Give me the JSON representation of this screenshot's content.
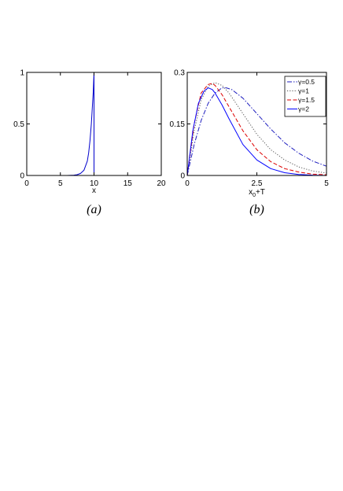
{
  "captions": [
    "(a)",
    "(b)"
  ],
  "chart_data": [
    {
      "type": "line",
      "xlabel": "x",
      "ylabel": "",
      "xlim": [
        0,
        20
      ],
      "ylim": [
        0,
        1
      ],
      "xticks": [
        0,
        5,
        10,
        15,
        20
      ],
      "yticks": [
        0,
        0.5,
        1
      ],
      "xtick_labels": [
        "0",
        "5",
        "10",
        "15",
        "20"
      ],
      "ytick_labels": [
        "0",
        "0.5",
        "1"
      ],
      "grid": false,
      "series": [
        {
          "color": "#0000cc",
          "style": "solid",
          "x": [
            0,
            6,
            7,
            7.5,
            8,
            8.5,
            9,
            9.2,
            9.4,
            9.6,
            9.7,
            9.8,
            9.9,
            10,
            10,
            10.1,
            10.3,
            20
          ],
          "y": [
            0,
            0,
            0.003,
            0.008,
            0.02,
            0.05,
            0.14,
            0.22,
            0.34,
            0.5,
            0.6,
            0.72,
            0.82,
            1.0,
            0,
            0,
            0,
            0
          ]
        }
      ]
    },
    {
      "type": "line",
      "xlabel": "x₀+T",
      "xlabel_parts": [
        "x",
        "0",
        "+T"
      ],
      "ylabel": "",
      "xlim": [
        0,
        5
      ],
      "ylim": [
        0,
        0.3
      ],
      "xticks": [
        0,
        2.5,
        5
      ],
      "yticks": [
        0,
        0.15,
        0.3
      ],
      "xtick_labels": [
        "0",
        "2.5",
        "5"
      ],
      "ytick_labels": [
        "0",
        "0.15",
        "0.3"
      ],
      "grid": false,
      "legend_position": "top-right",
      "series": [
        {
          "name": "γ=0.5",
          "color": "#1f1fbf",
          "style": "dashdot",
          "x": [
            0,
            0.25,
            0.5,
            0.75,
            1.0,
            1.25,
            1.4,
            1.6,
            2.0,
            2.5,
            3.0,
            3.5,
            4.0,
            4.5,
            5.0
          ],
          "y": [
            0,
            0.09,
            0.16,
            0.21,
            0.24,
            0.255,
            0.255,
            0.25,
            0.225,
            0.18,
            0.135,
            0.095,
            0.065,
            0.042,
            0.027
          ]
        },
        {
          "name": "γ=1",
          "color": "#555555",
          "style": "dotted",
          "x": [
            0,
            0.25,
            0.5,
            0.75,
            1.0,
            1.25,
            1.5,
            2.0,
            2.5,
            3.0,
            3.5,
            4.0,
            4.5,
            5.0
          ],
          "y": [
            0,
            0.13,
            0.22,
            0.26,
            0.27,
            0.262,
            0.24,
            0.18,
            0.12,
            0.075,
            0.045,
            0.025,
            0.013,
            0.007
          ]
        },
        {
          "name": "γ=1.5",
          "color": "#dd0000",
          "style": "dashed",
          "x": [
            0,
            0.25,
            0.5,
            0.75,
            0.9,
            1.0,
            1.25,
            1.5,
            2.0,
            2.5,
            3.0,
            3.5,
            4.0,
            4.5,
            5.0
          ],
          "y": [
            0,
            0.15,
            0.24,
            0.265,
            0.268,
            0.262,
            0.235,
            0.2,
            0.13,
            0.075,
            0.04,
            0.02,
            0.01,
            0.004,
            0.002
          ]
        },
        {
          "name": "γ=2",
          "color": "#0000ff",
          "style": "solid",
          "x": [
            0,
            0.2,
            0.4,
            0.6,
            0.75,
            0.9,
            1.0,
            1.25,
            1.5,
            2.0,
            2.5,
            3.0,
            3.5,
            4.0,
            4.5,
            5.0
          ],
          "y": [
            0,
            0.13,
            0.21,
            0.245,
            0.255,
            0.25,
            0.24,
            0.205,
            0.165,
            0.09,
            0.045,
            0.02,
            0.008,
            0.003,
            0.001,
            0
          ]
        }
      ]
    }
  ]
}
